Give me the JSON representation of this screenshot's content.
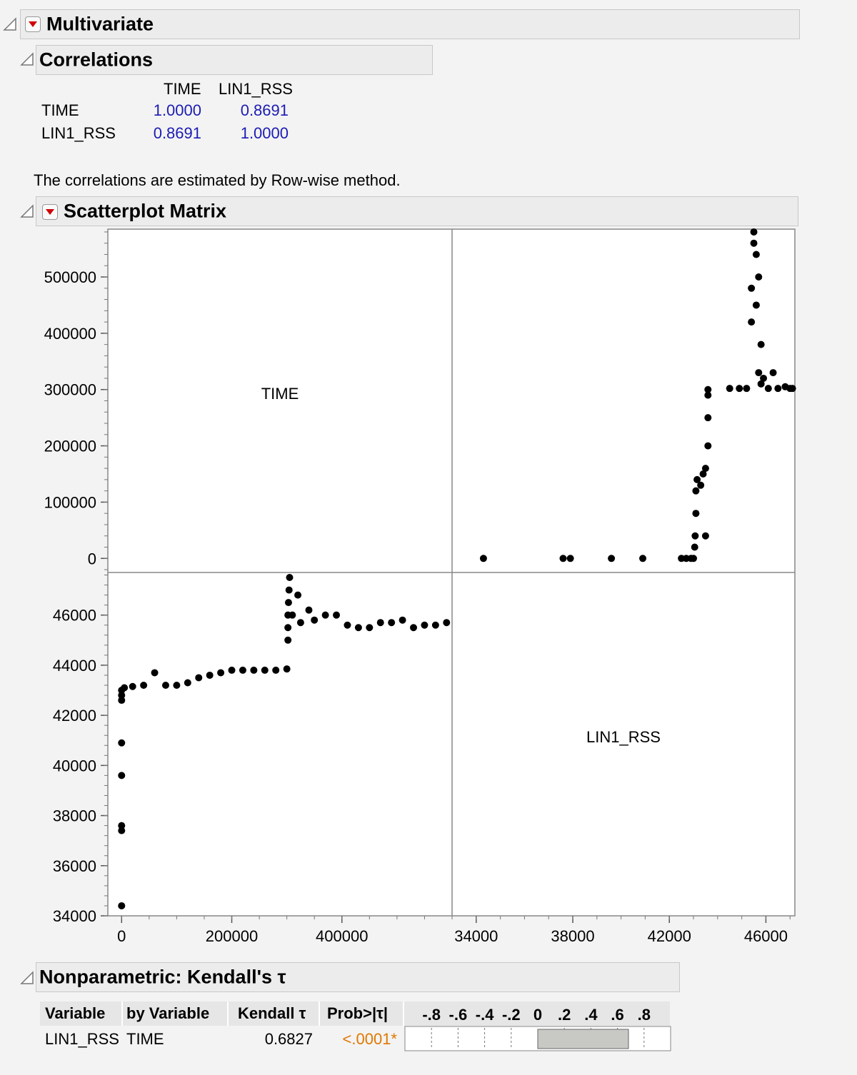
{
  "multivariate": {
    "title": "Multivariate"
  },
  "correlations": {
    "title": "Correlations",
    "columns": [
      "TIME",
      "LIN1_RSS"
    ],
    "rows": [
      {
        "label": "TIME",
        "values": [
          "1.0000",
          "0.8691"
        ]
      },
      {
        "label": "LIN1_RSS",
        "values": [
          "0.8691",
          "1.0000"
        ]
      }
    ],
    "note": "The correlations are estimated by Row-wise method.",
    "value_color": "#1c1cb4"
  },
  "scatterplot": {
    "title": "Scatterplot Matrix",
    "diag_labels": [
      "TIME",
      "LIN1_RSS"
    ]
  },
  "chart_data": [
    {
      "type": "scatter",
      "panel": "top-right",
      "xvar": "LIN1_RSS",
      "yvar": "TIME",
      "xlim": [
        33000,
        47200
      ],
      "ylim": [
        -25000,
        585000
      ],
      "xticks": [
        "34000",
        "38000",
        "42000",
        "46000"
      ],
      "yticks": [
        "0",
        "100000",
        "200000",
        "300000",
        "400000",
        "500000"
      ],
      "points": [
        [
          34300,
          0
        ],
        [
          37600,
          0
        ],
        [
          37900,
          0
        ],
        [
          39600,
          0
        ],
        [
          40900,
          0
        ],
        [
          42500,
          0
        ],
        [
          42700,
          0
        ],
        [
          42900,
          0
        ],
        [
          43000,
          0
        ],
        [
          43050,
          20000
        ],
        [
          43070,
          40000
        ],
        [
          43100,
          80000
        ],
        [
          43100,
          120000
        ],
        [
          43150,
          140000
        ],
        [
          43300,
          130000
        ],
        [
          43400,
          150000
        ],
        [
          43500,
          40000
        ],
        [
          43500,
          160000
        ],
        [
          43600,
          200000
        ],
        [
          43600,
          250000
        ],
        [
          43600,
          290000
        ],
        [
          43600,
          300000
        ],
        [
          44500,
          302000
        ],
        [
          44900,
          302000
        ],
        [
          45200,
          302000
        ],
        [
          45400,
          420000
        ],
        [
          45400,
          480000
        ],
        [
          45500,
          560000
        ],
        [
          45500,
          580000
        ],
        [
          45600,
          540000
        ],
        [
          45600,
          450000
        ],
        [
          45700,
          500000
        ],
        [
          45700,
          330000
        ],
        [
          45800,
          380000
        ],
        [
          45800,
          310000
        ],
        [
          45900,
          320000
        ],
        [
          46100,
          302000
        ],
        [
          46300,
          330000
        ],
        [
          46500,
          302000
        ],
        [
          46800,
          305000
        ],
        [
          47000,
          302000
        ],
        [
          47100,
          302000
        ]
      ],
      "point_color": "#000000"
    },
    {
      "type": "scatter",
      "panel": "bottom-left",
      "xvar": "TIME",
      "yvar": "LIN1_RSS",
      "xlim": [
        -25000,
        600000
      ],
      "ylim": [
        34000,
        47700
      ],
      "xticks": [
        "0",
        "200000",
        "400000"
      ],
      "yticks": [
        "34000",
        "36000",
        "38000",
        "40000",
        "42000",
        "44000",
        "46000"
      ],
      "points": [
        [
          0,
          34400
        ],
        [
          0,
          37400
        ],
        [
          0,
          37600
        ],
        [
          0,
          39600
        ],
        [
          0,
          40900
        ],
        [
          0,
          42600
        ],
        [
          0,
          42800
        ],
        [
          0,
          43000
        ],
        [
          5000,
          43100
        ],
        [
          20000,
          43150
        ],
        [
          40000,
          43200
        ],
        [
          60000,
          43700
        ],
        [
          80000,
          43200
        ],
        [
          100000,
          43200
        ],
        [
          120000,
          43300
        ],
        [
          140000,
          43500
        ],
        [
          160000,
          43600
        ],
        [
          180000,
          43700
        ],
        [
          200000,
          43800
        ],
        [
          220000,
          43800
        ],
        [
          240000,
          43800
        ],
        [
          260000,
          43800
        ],
        [
          280000,
          43800
        ],
        [
          300000,
          43850
        ],
        [
          302000,
          45000
        ],
        [
          302000,
          45500
        ],
        [
          302000,
          46000
        ],
        [
          303000,
          46500
        ],
        [
          304000,
          47000
        ],
        [
          305000,
          47500
        ],
        [
          310000,
          46000
        ],
        [
          320000,
          46800
        ],
        [
          325000,
          45700
        ],
        [
          340000,
          46200
        ],
        [
          350000,
          45800
        ],
        [
          370000,
          46000
        ],
        [
          390000,
          46000
        ],
        [
          410000,
          45600
        ],
        [
          430000,
          45500
        ],
        [
          450000,
          45500
        ],
        [
          470000,
          45700
        ],
        [
          490000,
          45700
        ],
        [
          510000,
          45800
        ],
        [
          530000,
          45500
        ],
        [
          550000,
          45600
        ],
        [
          570000,
          45600
        ],
        [
          590000,
          45700
        ]
      ],
      "point_color": "#000000"
    }
  ],
  "kendall": {
    "title": "Nonparametric: Kendall's τ",
    "headers": [
      "Variable",
      "by Variable",
      "Kendall τ",
      "Prob>|τ|"
    ],
    "bar_ticks": [
      "-.8",
      "-.6",
      "-.4",
      "-.2",
      "0",
      ".2",
      ".4",
      ".6",
      ".8"
    ],
    "row": {
      "variable": "LIN1_RSS",
      "by": "TIME",
      "tau": "0.6827",
      "prob": "<.0001*"
    },
    "tau_value": 0.6827,
    "prob_color": "#e07800",
    "bar_color": "#c8c8c4"
  }
}
